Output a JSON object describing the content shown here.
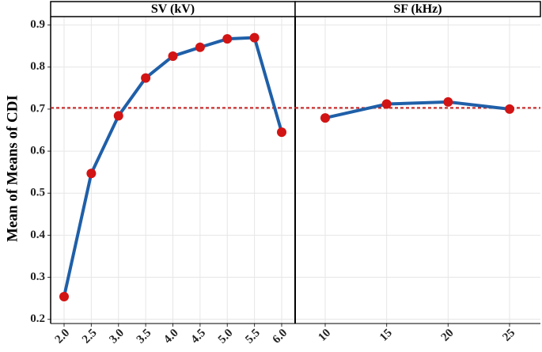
{
  "chart_data": {
    "type": "line",
    "ylabel": "Mean of Means of CDI",
    "ylim": [
      0.19,
      0.92
    ],
    "yticks": [
      "0.2",
      "0.3",
      "0.4",
      "0.5",
      "0.6",
      "0.7",
      "0.8",
      "0.9"
    ],
    "reference_line": {
      "y": 0.703,
      "style": "dashed",
      "color": "#c81e1e"
    },
    "line_color": "#1f5fa8",
    "point_color": "#d21414",
    "grid": true,
    "panels": [
      {
        "title": "SV (kV)",
        "categories": [
          "2.0",
          "2.5",
          "3.0",
          "3.5",
          "4.0",
          "4.5",
          "5.0",
          "5.5",
          "6.0"
        ],
        "values": [
          0.254,
          0.547,
          0.684,
          0.774,
          0.826,
          0.847,
          0.867,
          0.87,
          0.645
        ]
      },
      {
        "title": "SF (kHz)",
        "categories": [
          "10",
          "15",
          "20",
          "25"
        ],
        "values": [
          0.679,
          0.712,
          0.717,
          0.7
        ]
      }
    ]
  }
}
